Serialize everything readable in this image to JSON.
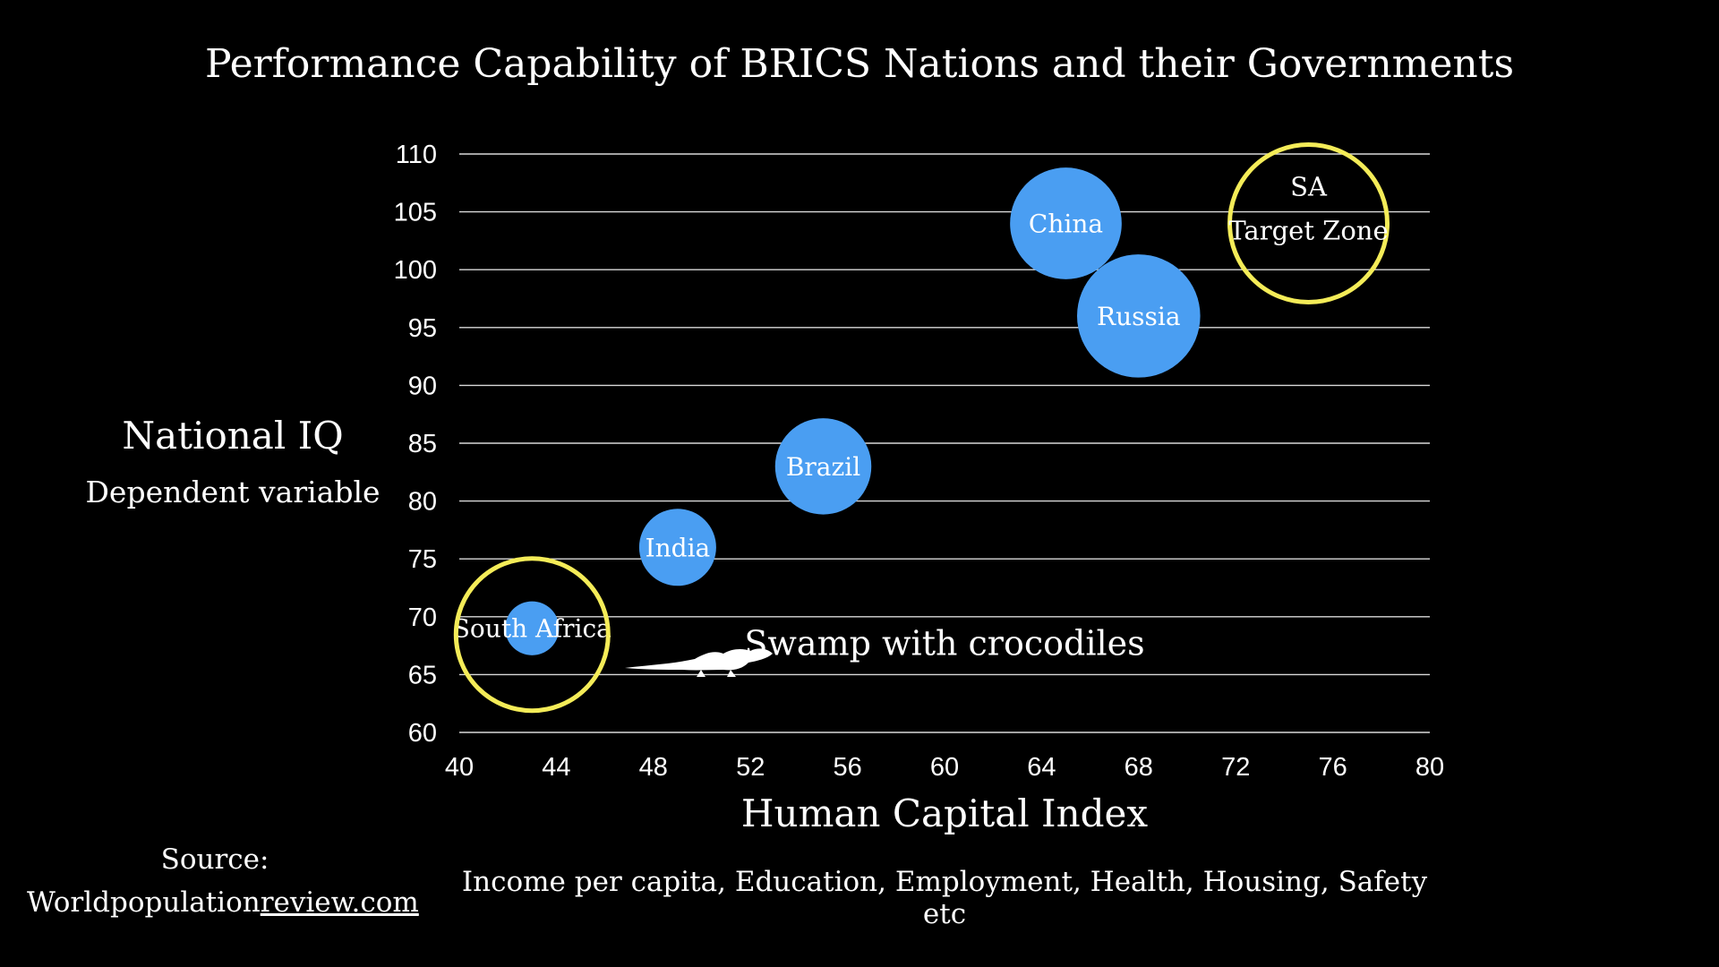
{
  "chart_data": {
    "type": "scatter",
    "title": "Performance Capability of BRICS Nations and their Governments",
    "xlabel": "Human Capital Index",
    "xlabel_sub": "Income per capita, Education, Employment, Health, Housing, Safety etc",
    "ylabel": "National IQ",
    "ylabel_sub": "Dependent variable",
    "xlim": [
      40,
      80
    ],
    "ylim": [
      60,
      110
    ],
    "x_ticks": [
      "40",
      "44",
      "48",
      "52",
      "56",
      "60",
      "64",
      "68",
      "72",
      "76",
      "80"
    ],
    "y_ticks": [
      "110",
      "105",
      "100",
      "95",
      "90",
      "85",
      "80",
      "75",
      "70",
      "65",
      "60"
    ],
    "grid": true,
    "points": [
      {
        "label": "South Africa",
        "x": 43.0,
        "y": 69.0,
        "size": 1.4
      },
      {
        "label": "India",
        "x": 49.0,
        "y": 76.0,
        "size": 2.0
      },
      {
        "label": "Brazil",
        "x": 55.0,
        "y": 83.0,
        "size": 2.5
      },
      {
        "label": "China",
        "x": 65.0,
        "y": 104.0,
        "size": 2.9
      },
      {
        "label": "Russia",
        "x": 68.0,
        "y": 96.0,
        "size": 3.2
      }
    ],
    "annotations": [
      {
        "text": "Swamp with crocodiles",
        "x": 60,
        "y": 67
      },
      {
        "text_line1": "SA",
        "text_line2": "Target Zone",
        "x": 75,
        "y": 104
      }
    ],
    "colors": {
      "bubble": "#4a9ef2",
      "highlight_ring": "#f4ec58",
      "background": "#000000"
    }
  },
  "source": {
    "label": "Source:",
    "site_prefix": "Worldpopulation",
    "site_link": "review.com"
  },
  "icons": [
    "crocodile-icon"
  ]
}
